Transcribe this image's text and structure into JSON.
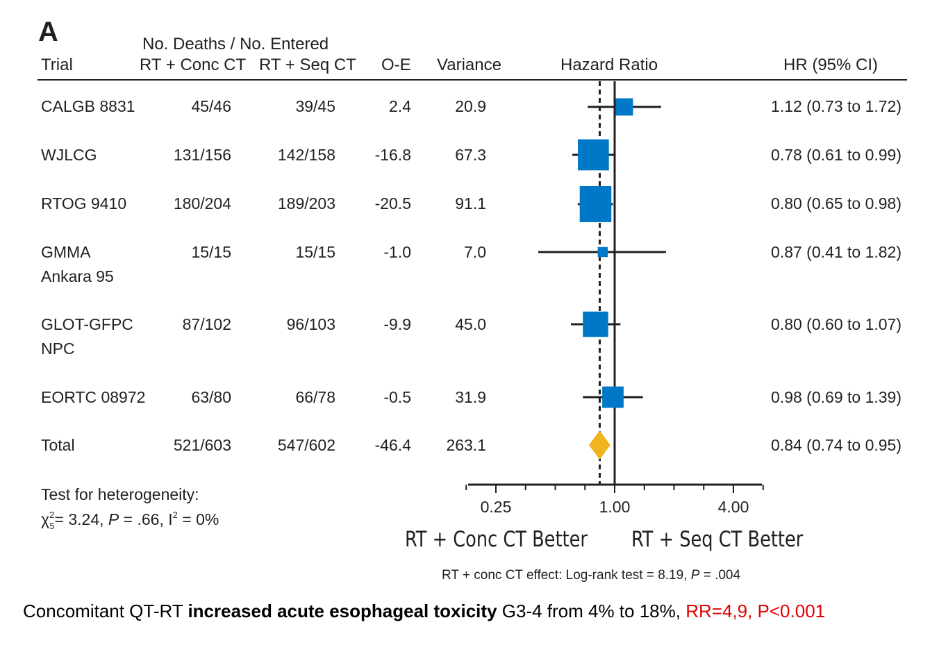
{
  "panel_label": "A",
  "headers": {
    "trial": "Trial",
    "deaths_group": "No. Deaths / No. Entered",
    "conc": "RT + Conc CT",
    "seq": "RT + Seq CT",
    "oe": "O-E",
    "variance": "Variance",
    "hr_plot": "Hazard Ratio",
    "hr_ci": "HR (95% CI)"
  },
  "rows": [
    {
      "trial": [
        "CALGB 8831"
      ],
      "conc": "45/46",
      "seq": "39/45",
      "oe": "2.4",
      "variance": "20.9",
      "hr_ci": "1.12 (0.73 to 1.72)"
    },
    {
      "trial": [
        "WJLCG"
      ],
      "conc": "131/156",
      "seq": "142/158",
      "oe": "-16.8",
      "variance": "67.3",
      "hr_ci": "0.78 (0.61 to 0.99)"
    },
    {
      "trial": [
        "RTOG 9410"
      ],
      "conc": "180/204",
      "seq": "189/203",
      "oe": "-20.5",
      "variance": "91.1",
      "hr_ci": "0.80 (0.65 to 0.98)"
    },
    {
      "trial": [
        "GMMA",
        "Ankara 95"
      ],
      "conc": "15/15",
      "seq": "15/15",
      "oe": "-1.0",
      "variance": "7.0",
      "hr_ci": "0.87 (0.41 to 1.82)"
    },
    {
      "trial": [
        "GLOT-GFPC",
        "NPC"
      ],
      "conc": "87/102",
      "seq": "96/103",
      "oe": "-9.9",
      "variance": "45.0",
      "hr_ci": "0.80 (0.60 to 1.07)"
    },
    {
      "trial": [
        "EORTC 08972"
      ],
      "conc": "63/80",
      "seq": "66/78",
      "oe": "-0.5",
      "variance": "31.9",
      "hr_ci": "0.98 (0.69 to 1.39)"
    },
    {
      "trial": [
        "Total"
      ],
      "conc": "521/603",
      "seq": "547/602",
      "oe": "-46.4",
      "variance": "263.1",
      "hr_ci": "0.84 (0.74 to 0.95)"
    }
  ],
  "heterogeneity": {
    "line1": "Test for heterogeneity:",
    "chi": "χ",
    "chi_sup": "2",
    "chi_sub": "5",
    "chi_rest": "= 3.24, ",
    "p_label": "P",
    "p_rest": " = .66, I",
    "i_sup": "2",
    "i_rest": " = 0%"
  },
  "axis": {
    "better_left": "RT + Conc CT Better",
    "better_right": "RT + Seq CT Better",
    "logrank_pre": "RT + conc CT effect: Log-rank test = 8.19, ",
    "logrank_p": "P",
    "logrank_post": " = .004"
  },
  "caption": {
    "part1": "Concomitant QT-RT ",
    "bold": "increased acute esophageal toxicity",
    "part2": " G3-4 from 4% to 18%, ",
    "red": "RR=4,9, P<0.001"
  },
  "colors": {
    "square": "#0078c8",
    "diamond": "#f0b41e",
    "text": "#231f20",
    "red": "#e00000"
  },
  "chart_data": {
    "type": "forest",
    "x_scale": "log",
    "xlim": [
      0.125,
      6.0
    ],
    "xticks": [
      0.25,
      1.0,
      4.0
    ],
    "xtick_labels": [
      "0.25",
      "1.00",
      "4.00"
    ],
    "reference_line": 1.0,
    "pooled_line": 0.84,
    "studies": [
      {
        "name": "CALGB 8831",
        "hr": 1.12,
        "lo": 0.73,
        "hi": 1.72,
        "variance": 20.9
      },
      {
        "name": "WJLCG",
        "hr": 0.78,
        "lo": 0.61,
        "hi": 0.99,
        "variance": 67.3
      },
      {
        "name": "RTOG 9410",
        "hr": 0.8,
        "lo": 0.65,
        "hi": 0.98,
        "variance": 91.1
      },
      {
        "name": "GMMA Ankara 95",
        "hr": 0.87,
        "lo": 0.41,
        "hi": 1.82,
        "variance": 7.0
      },
      {
        "name": "GLOT-GFPC NPC",
        "hr": 0.8,
        "lo": 0.6,
        "hi": 1.07,
        "variance": 45.0
      },
      {
        "name": "EORTC 08972",
        "hr": 0.98,
        "lo": 0.69,
        "hi": 1.39,
        "variance": 31.9
      }
    ],
    "total": {
      "name": "Total",
      "hr": 0.84,
      "lo": 0.74,
      "hi": 0.95,
      "variance": 263.1
    }
  }
}
